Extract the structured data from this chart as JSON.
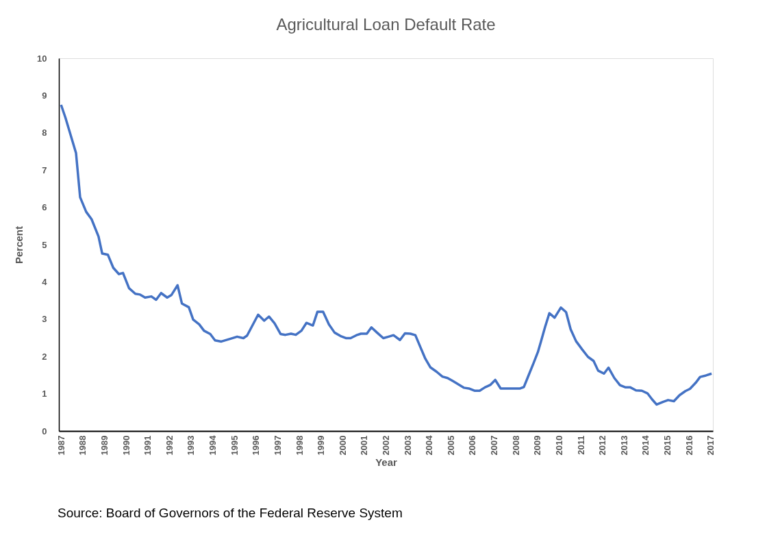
{
  "chart_data": {
    "type": "line",
    "title": "Agricultural Loan Default Rate",
    "xlabel": "Year",
    "ylabel": "Percent",
    "annotations": [
      "Source:  Board of Governors of the Federal Reserve System"
    ],
    "x": [
      1987.0,
      1987.2,
      1987.69,
      1987.88,
      1988.16,
      1988.41,
      1988.73,
      1988.9,
      1989.16,
      1989.41,
      1989.67,
      1989.86,
      1990.14,
      1990.43,
      1990.65,
      1990.88,
      1991.17,
      1991.39,
      1991.62,
      1991.9,
      1992.1,
      1992.38,
      1992.58,
      1992.9,
      1993.1,
      1993.38,
      1993.6,
      1993.89,
      1994.11,
      1994.4,
      1994.85,
      1995.13,
      1995.42,
      1995.59,
      1996.1,
      1996.38,
      1996.6,
      1996.86,
      1997.14,
      1997.36,
      1997.62,
      1997.84,
      1998.1,
      1998.33,
      1998.63,
      1998.84,
      1999.1,
      1999.37,
      1999.63,
      1999.9,
      2000.17,
      2000.37,
      2000.64,
      2000.85,
      2001.12,
      2001.33,
      2001.59,
      2001.88,
      2002.12,
      2002.35,
      2002.65,
      2002.88,
      2003.13,
      2003.36,
      2003.6,
      2003.82,
      2004.05,
      2004.34,
      2004.61,
      2004.85,
      2005.09,
      2005.35,
      2005.61,
      2005.83,
      2006.09,
      2006.33,
      2006.57,
      2006.83,
      2007.05,
      2007.3,
      2007.62,
      2007.94,
      2008.2,
      2008.37,
      2008.58,
      2008.81,
      2009.02,
      2009.16,
      2009.35,
      2009.55,
      2009.79,
      2010.08,
      2010.32,
      2010.53,
      2010.78,
      2011.06,
      2011.33,
      2011.59,
      2011.8,
      2012.07,
      2012.28,
      2012.55,
      2012.81,
      2013.07,
      2013.29,
      2013.55,
      2013.82,
      2014.08,
      2014.29,
      2014.5,
      2014.79,
      2015.03,
      2015.3,
      2015.56,
      2015.83,
      2016.04,
      2016.3,
      2016.51,
      2016.78,
      2017.04
    ],
    "series": [
      {
        "color": "#4472c4",
        "values": [
          8.75,
          8.41,
          7.46,
          6.27,
          5.88,
          5.68,
          5.22,
          4.76,
          4.73,
          4.38,
          4.21,
          4.24,
          3.83,
          3.68,
          3.66,
          3.58,
          3.61,
          3.52,
          3.7,
          3.58,
          3.65,
          3.91,
          3.42,
          3.32,
          2.99,
          2.86,
          2.69,
          2.6,
          2.43,
          2.4,
          2.48,
          2.53,
          2.49,
          2.56,
          3.12,
          2.96,
          3.07,
          2.89,
          2.6,
          2.58,
          2.61,
          2.58,
          2.69,
          2.9,
          2.83,
          3.2,
          3.2,
          2.86,
          2.64,
          2.55,
          2.49,
          2.49,
          2.57,
          2.61,
          2.61,
          2.78,
          2.64,
          2.49,
          2.53,
          2.57,
          2.44,
          2.62,
          2.61,
          2.57,
          2.24,
          1.94,
          1.71,
          1.59,
          1.46,
          1.42,
          1.34,
          1.25,
          1.16,
          1.14,
          1.08,
          1.08,
          1.17,
          1.24,
          1.37,
          1.14,
          1.14,
          1.14,
          1.14,
          1.18,
          1.48,
          1.81,
          2.12,
          2.4,
          2.79,
          3.16,
          3.04,
          3.31,
          3.19,
          2.73,
          2.41,
          2.19,
          1.99,
          1.88,
          1.62,
          1.54,
          1.7,
          1.42,
          1.23,
          1.17,
          1.17,
          1.09,
          1.08,
          1.01,
          0.85,
          0.71,
          0.78,
          0.83,
          0.8,
          0.96,
          1.07,
          1.13,
          1.29,
          1.45,
          1.49,
          1.54
        ]
      }
    ],
    "xlim": [
      1986.9,
      2017.1
    ],
    "xticks": [
      1987,
      1988,
      1989,
      1990,
      1991,
      1992,
      1993,
      1994,
      1995,
      1996,
      1997,
      1998,
      1999,
      2000,
      2001,
      2002,
      2003,
      2004,
      2005,
      2006,
      2007,
      2008,
      2009,
      2010,
      2011,
      2012,
      2013,
      2014,
      2015,
      2016,
      2017
    ],
    "ylim": [
      0,
      10
    ],
    "yticks": [
      0,
      1,
      2,
      3,
      4,
      5,
      6,
      7,
      8,
      9,
      10
    ],
    "grid": false,
    "legend": false,
    "line_style": "solid",
    "marker": "none"
  }
}
